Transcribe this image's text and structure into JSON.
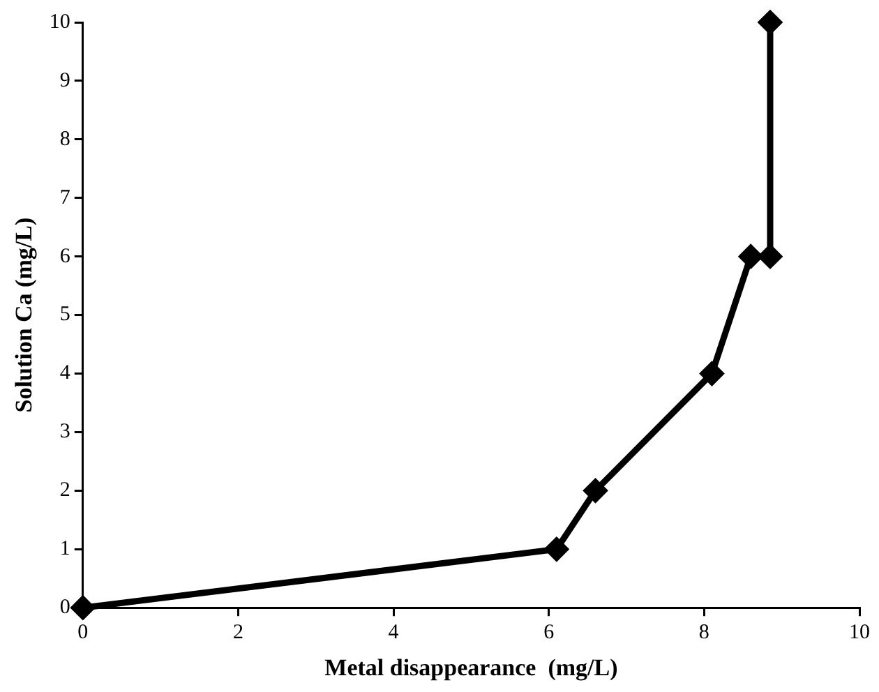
{
  "chart_data": {
    "type": "line",
    "xlabel": "Metal disappearance  (mg/L)",
    "ylabel": "Solution Ca (mg/L)",
    "series": [
      {
        "x": [
          0,
          6.1,
          6.6,
          8.1,
          8.6,
          8.85,
          8.85
        ],
        "values": [
          0,
          1,
          2,
          4,
          6,
          6,
          10
        ],
        "color": "#000000"
      }
    ],
    "xlim": [
      0,
      10
    ],
    "xticks": [
      0,
      2,
      4,
      6,
      8,
      10
    ],
    "ylim": [
      0,
      10
    ],
    "yticks": [
      0,
      1,
      2,
      3,
      4,
      5,
      6,
      7,
      8,
      9,
      10
    ],
    "grid": false,
    "legend": false,
    "marker": "diamond",
    "line_style": "solid"
  }
}
